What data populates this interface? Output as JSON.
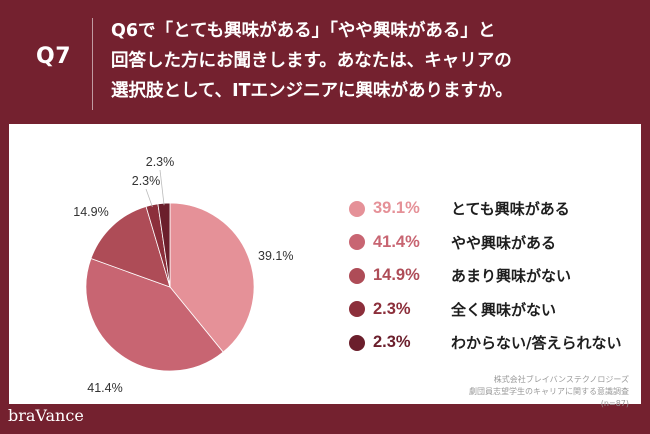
{
  "header": {
    "question_number": "Q7",
    "question_lines": [
      "Q6で「とても興味がある」「やや興味がある」と",
      "回答した方にお聞きします。あなたは、キャリアの",
      "選択肢として、ITエンジニアに興味がありますか。"
    ]
  },
  "chart_data": {
    "type": "pie",
    "slices": [
      {
        "label": "とても興味がある",
        "value": 39.1,
        "value_label": "39.1%",
        "color": "#e59198"
      },
      {
        "label": "やや興味がある",
        "value": 41.4,
        "value_label": "41.4%",
        "color": "#c86572"
      },
      {
        "label": "あまり興味がない",
        "value": 14.9,
        "value_label": "14.9%",
        "color": "#ae4c57"
      },
      {
        "label": "全く興味がない",
        "value": 2.3,
        "value_label": "2.3%",
        "color": "#8c2f3b"
      },
      {
        "label": "わからない/答えられない",
        "value": 2.3,
        "value_label": "2.3%",
        "color": "#6b1f2c"
      }
    ],
    "start_angle_deg": 0,
    "direction": "clockwise",
    "legend_position": "right"
  },
  "source": {
    "company": "株式会社ブレイバンステクノロジーズ",
    "survey": "劇団員志望学生のキャリアに関する意識調査",
    "sample": "(n=87)"
  },
  "brand": {
    "name": "braVance"
  },
  "colors": {
    "background": "#74212f",
    "card": "#ffffff"
  }
}
